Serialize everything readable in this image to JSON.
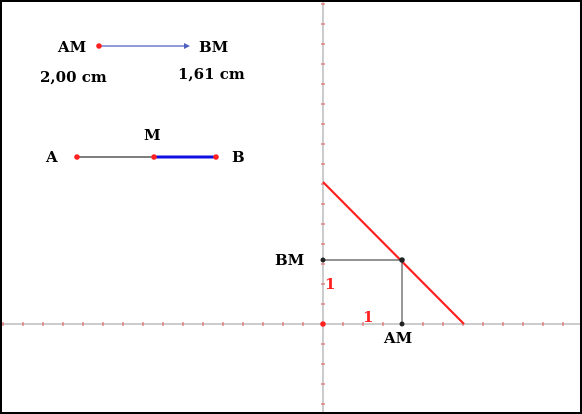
{
  "colors": {
    "frame": "#000000",
    "axis": "#9a9a9a",
    "tick": "#e05050",
    "red": "#ff2020",
    "blue": "#1010e0",
    "thin_blue": "#5060c0",
    "guide": "#555555",
    "point_black": "#222222"
  },
  "measure": {
    "am_label": "AM",
    "bm_label": "BM",
    "am_value": "2,00 cm",
    "bm_value": "1,61 cm"
  },
  "segment": {
    "a_label": "A",
    "m_label": "M",
    "b_label": "B",
    "am_fraction": 0.554
  },
  "graph": {
    "bm_label": "BM",
    "am_label": "AM",
    "unit_y": "1",
    "unit_x": "1"
  }
}
